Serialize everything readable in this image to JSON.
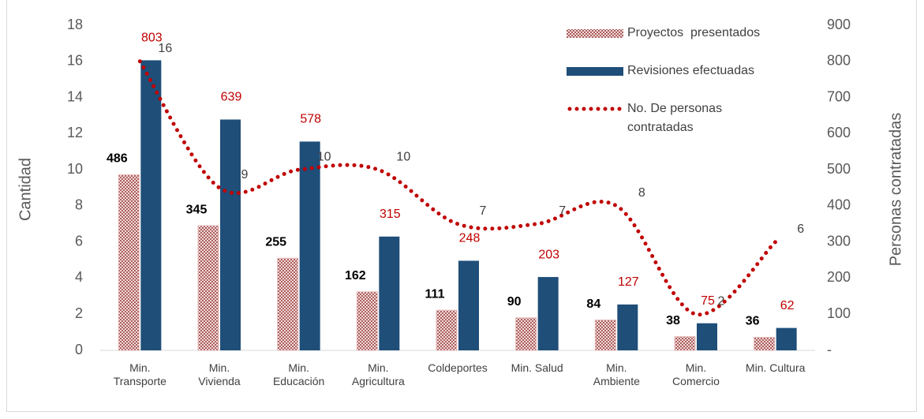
{
  "chart_data": {
    "type": "bar",
    "categories": [
      "Min.\nTransporte",
      "Min.\nVivienda",
      "Min.\nEducación",
      "Min.\nAgricultura",
      "Coldeportes",
      "Min. Salud",
      "Min.\nAmbiente",
      "Min.\nComercio",
      "Min. Cultura"
    ],
    "series": [
      {
        "name": "Proyectos  presentados",
        "type": "bar",
        "axis": "y2",
        "color": "#943634",
        "values": [
          486,
          345,
          255,
          162,
          111,
          90,
          84,
          38,
          36
        ]
      },
      {
        "name": "Revisiones efectuadas",
        "type": "bar",
        "axis": "y2",
        "color": "#1f4e79",
        "values": [
          803,
          639,
          578,
          315,
          248,
          203,
          127,
          75,
          62
        ]
      },
      {
        "name": "No. De personas contratadas",
        "type": "line",
        "axis": "y",
        "color": "#c00000",
        "values": [
          16,
          9,
          10,
          10,
          7,
          7,
          8,
          2,
          6
        ]
      }
    ],
    "ylabel": "Cantidad",
    "y2label": "Personas contratadas",
    "ylim": [
      0,
      18
    ],
    "yticks": [
      0,
      2,
      4,
      6,
      8,
      10,
      12,
      14,
      16,
      18
    ],
    "y2lim": [
      0,
      900
    ],
    "y2ticks": [
      {
        "value": 0,
        "label": "-"
      },
      100,
      200,
      300,
      400,
      500,
      600,
      700,
      800,
      900
    ],
    "legend": "top-right"
  }
}
